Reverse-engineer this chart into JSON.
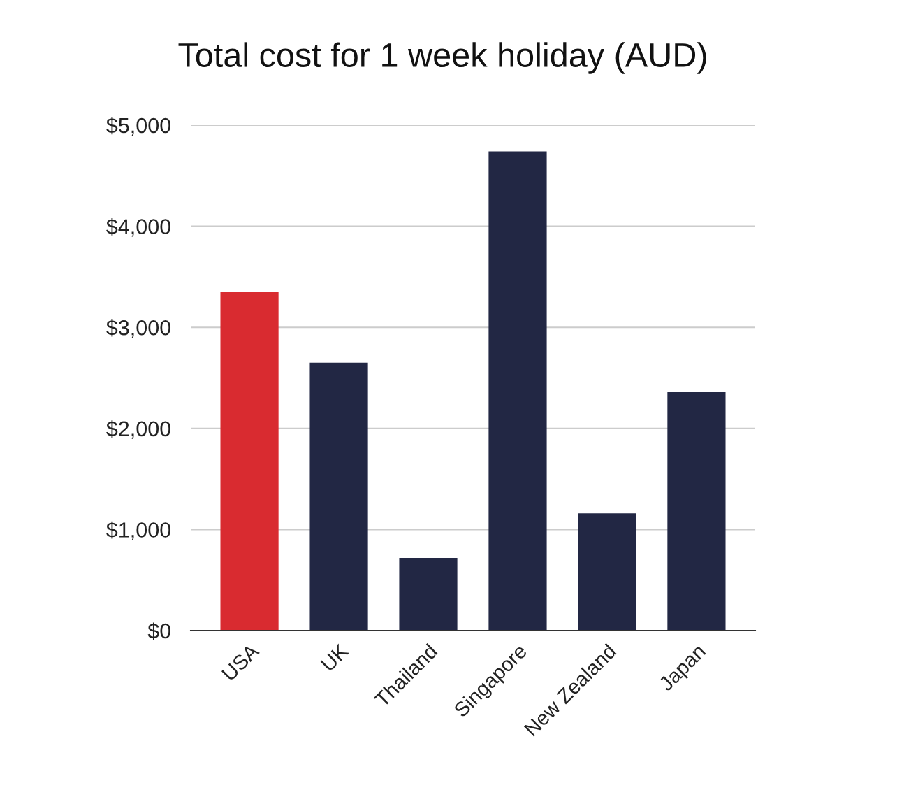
{
  "chart_data": {
    "type": "bar",
    "title": "Total cost for 1 week holiday (AUD)",
    "categories": [
      "USA",
      "UK",
      "Thailand",
      "Singapore",
      "New Zealand",
      "Japan"
    ],
    "values": [
      3350,
      2650,
      720,
      4740,
      1160,
      2360
    ],
    "colors": [
      "#d92b30",
      "#222744",
      "#222744",
      "#222744",
      "#222744",
      "#222744"
    ],
    "ylim": [
      0,
      5000
    ],
    "yticks": [
      {
        "value": 0,
        "label": "$0"
      },
      {
        "value": 1000,
        "label": "$1,000"
      },
      {
        "value": 2000,
        "label": "$2,000"
      },
      {
        "value": 3000,
        "label": "$3,000"
      },
      {
        "value": 4000,
        "label": "$4,000"
      },
      {
        "value": 5000,
        "label": "$5,000"
      }
    ],
    "grid": "y"
  }
}
